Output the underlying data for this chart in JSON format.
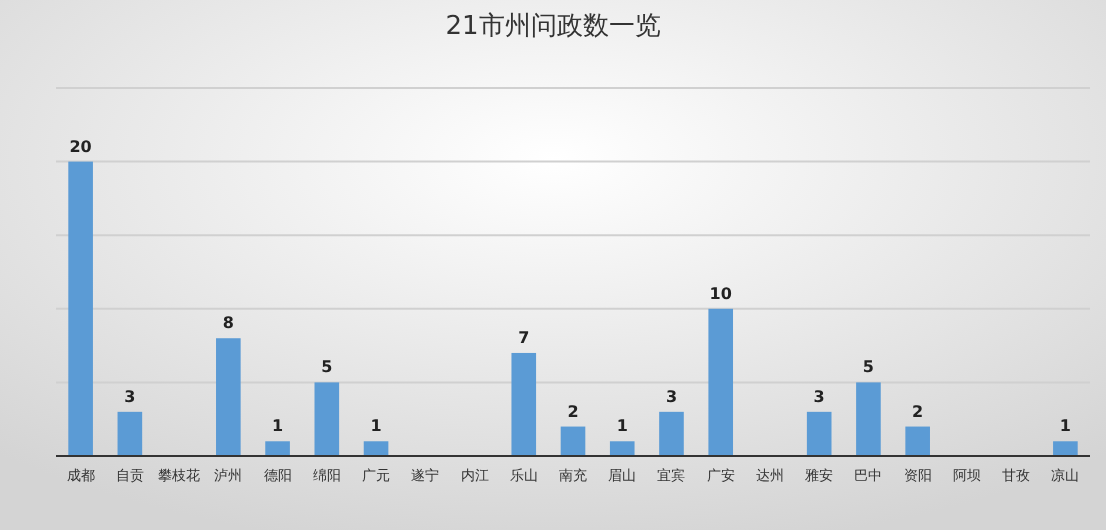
{
  "chart_data": {
    "type": "bar",
    "title": "21市州问政数一览",
    "categories": [
      "成都",
      "自贡",
      "攀枝花",
      "泸州",
      "德阳",
      "绵阳",
      "广元",
      "遂宁",
      "内江",
      "乐山",
      "南充",
      "眉山",
      "宜宾",
      "广安",
      "达州",
      "雅安",
      "巴中",
      "资阳",
      "阿坝",
      "甘孜",
      "凉山"
    ],
    "values": [
      20,
      3,
      0,
      8,
      1,
      5,
      1,
      0,
      0,
      7,
      2,
      1,
      3,
      10,
      0,
      3,
      5,
      2,
      0,
      0,
      1
    ],
    "value_labels": [
      "20",
      "3",
      null,
      "8",
      "1",
      "5",
      "1",
      null,
      null,
      "7",
      "2",
      "1",
      "3",
      "10",
      null,
      "3",
      "5",
      "2",
      null,
      null,
      "1"
    ],
    "color": "#5b9bd5",
    "ylim": [
      0,
      25
    ],
    "yticks": [
      {
        "value": 0,
        "label": null
      },
      {
        "value": 5,
        "label": null
      },
      {
        "value": 10,
        "label": null
      },
      {
        "value": 15,
        "label": null
      },
      {
        "value": 20,
        "label": null
      },
      {
        "value": 25,
        "label": null
      }
    ],
    "grid": "y",
    "tick_labels": "x"
  }
}
